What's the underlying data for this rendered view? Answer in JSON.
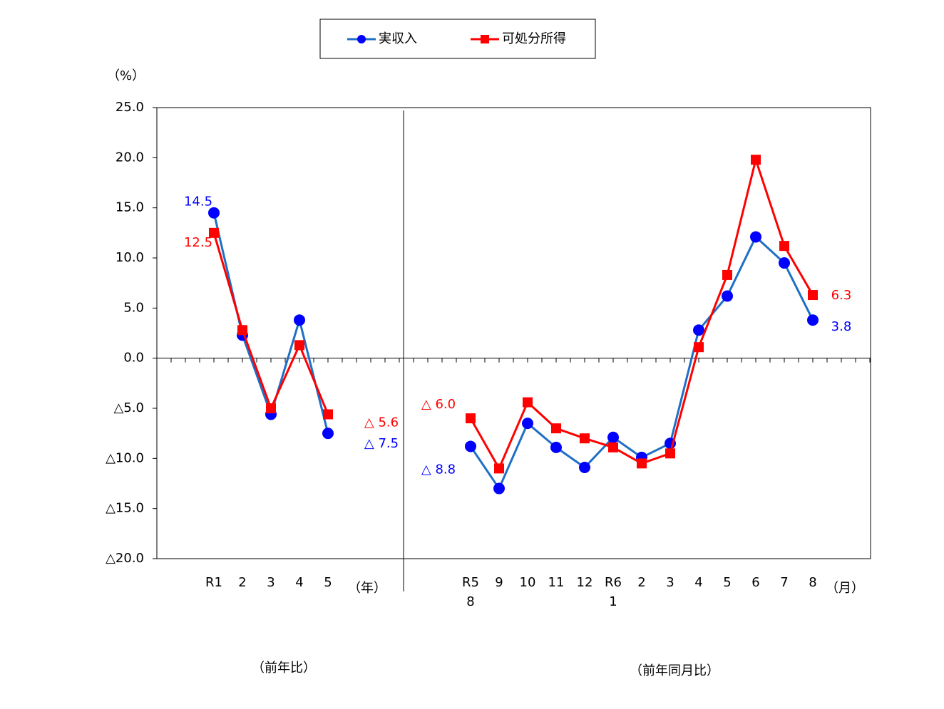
{
  "chart_data": {
    "type": "line",
    "y_unit_label": "（%）",
    "categories": [
      "R1",
      "2",
      "3",
      "4",
      "5",
      null,
      null,
      null,
      null,
      "R5\n8",
      "9",
      "10",
      "11",
      "12",
      "R6\n1",
      "2",
      "3",
      "4",
      "5",
      "6",
      "7",
      "8"
    ],
    "series": [
      {
        "name": "実収入",
        "color": "#0000ff",
        "line_color": "#1f6fc6",
        "marker": "circle",
        "values": [
          14.5,
          2.3,
          -5.6,
          3.8,
          -7.5,
          null,
          null,
          null,
          null,
          -8.8,
          -13.0,
          -6.5,
          -8.9,
          -10.9,
          -7.9,
          -9.9,
          -8.5,
          2.8,
          6.2,
          12.1,
          9.5,
          3.8
        ],
        "value_labels": [
          "14.5",
          null,
          null,
          null,
          "△ 7.5",
          null,
          null,
          null,
          null,
          "△ 8.8",
          null,
          null,
          null,
          null,
          null,
          null,
          null,
          null,
          null,
          null,
          null,
          "3.8"
        ]
      },
      {
        "name": "可処分所得",
        "color": "#ff0000",
        "line_color": "#ff0000",
        "marker": "square",
        "values": [
          12.5,
          2.8,
          -5.0,
          1.3,
          -5.6,
          null,
          null,
          null,
          null,
          -6.0,
          -11.0,
          -4.4,
          -7.0,
          -8.0,
          -8.9,
          -10.5,
          -9.5,
          1.1,
          8.3,
          19.8,
          11.2,
          6.3
        ],
        "value_labels": [
          "12.5",
          null,
          null,
          null,
          "△ 5.6",
          null,
          null,
          null,
          null,
          "△ 6.0",
          null,
          null,
          null,
          null,
          null,
          null,
          null,
          null,
          null,
          null,
          null,
          "6.3"
        ]
      }
    ],
    "ylim": [
      -20,
      25
    ],
    "yticks": [
      {
        "value": 25,
        "label": "25.0"
      },
      {
        "value": 20,
        "label": "20.0"
      },
      {
        "value": 15,
        "label": "15.0"
      },
      {
        "value": 10,
        "label": "10.0"
      },
      {
        "value": 5,
        "label": "5.0"
      },
      {
        "value": 0,
        "label": "0.0"
      },
      {
        "value": -5,
        "label": "△5.0"
      },
      {
        "value": -10,
        "label": "△10.0"
      },
      {
        "value": -15,
        "label": "△15.0"
      },
      {
        "value": -20,
        "label": "△20.0"
      }
    ],
    "group_units": [
      "（年）",
      "（月）"
    ],
    "group_labels": [
      "（前年比）",
      "（前年同月比）"
    ],
    "legend": "top"
  }
}
